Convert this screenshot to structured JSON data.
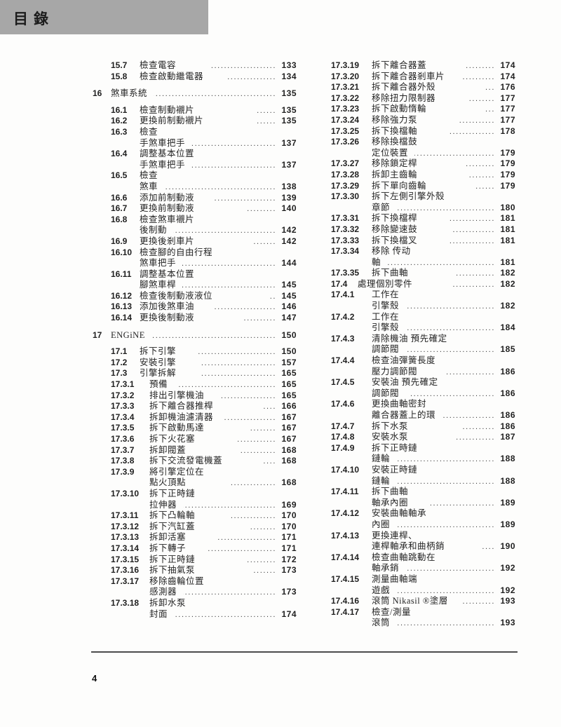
{
  "header": {
    "title": "目錄",
    "bar_color": "#a7a7a7"
  },
  "footer": {
    "page_number": "4"
  },
  "toc": {
    "columns": [
      {
        "entries": [
          {
            "num": "15.7",
            "level": 2,
            "lines": [
              "檢查電容"
            ],
            "dots": 20,
            "page": "133"
          },
          {
            "num": "15.8",
            "level": 2,
            "lines": [
              "檢查啟動繼電器"
            ],
            "dots": 15,
            "page": "134"
          },
          {
            "num": "16",
            "level": 1,
            "lines": [
              "煞車系統"
            ],
            "dots": 40,
            "page": "135"
          },
          {
            "num": "16.1",
            "level": 2,
            "lines": [
              "檢查制動襯片"
            ],
            "dots": 6,
            "page": "135"
          },
          {
            "num": "16.2",
            "level": 2,
            "lines": [
              "更換前制動襯片"
            ],
            "dots": 6,
            "page": "135"
          },
          {
            "num": "16.3",
            "level": 2,
            "lines": [
              "檢查",
              "手煞車把手"
            ],
            "dots": 30,
            "page": "137"
          },
          {
            "num": "16.4",
            "level": 2,
            "lines": [
              "調整基本位置",
              "手煞車把手"
            ],
            "dots": 29,
            "page": "137"
          },
          {
            "num": "16.5",
            "level": 2,
            "lines": [
              "檢查",
              "煞車"
            ],
            "dots": 36,
            "page": "138"
          },
          {
            "num": "16.6",
            "level": 2,
            "lines": [
              "添加前制動液"
            ],
            "dots": 19,
            "page": "139"
          },
          {
            "num": "16.7",
            "level": 2,
            "lines": [
              "更換前制動液"
            ],
            "dots": 9,
            "page": "140"
          },
          {
            "num": "16.8",
            "level": 2,
            "lines": [
              "檢查煞車襯片",
              "後制動"
            ],
            "dots": 40,
            "page": "142"
          },
          {
            "num": "16.9",
            "level": 2,
            "lines": [
              "更換後剎車片"
            ],
            "dots": 7,
            "page": "142"
          },
          {
            "num": "16.10",
            "level": 2,
            "lines": [
              "檢查腳的自由行程",
              "煞車把手"
            ],
            "dots": 39,
            "page": "144"
          },
          {
            "num": "16.11",
            "level": 2,
            "lines": [
              "調整基本位置",
              "腳煞車桿"
            ],
            "dots": 31,
            "page": "145"
          },
          {
            "num": "16.12",
            "level": 2,
            "lines": [
              "檢查後制動液液位"
            ],
            "dots": 2,
            "page": "145"
          },
          {
            "num": "16.13",
            "level": 2,
            "lines": [
              "添加後煞車油"
            ],
            "dots": 19,
            "page": "146"
          },
          {
            "num": "16.14",
            "level": 2,
            "lines": [
              "更換後制動液"
            ],
            "dots": 10,
            "page": "147"
          },
          {
            "num": "17",
            "level": 1,
            "lines": [
              "ENGiNE"
            ],
            "dots": 46,
            "page": "150"
          },
          {
            "num": "17.1",
            "level": 2,
            "lines": [
              "拆下引擎"
            ],
            "dots": 24,
            "page": "150"
          },
          {
            "num": "17.2",
            "level": 2,
            "lines": [
              "安裝引擎"
            ],
            "dots": 23,
            "page": "157"
          },
          {
            "num": "17.3",
            "level": 2,
            "lines": [
              "引擎拆解"
            ],
            "dots": 23,
            "page": "165"
          },
          {
            "num": "17.3.1",
            "level": 3,
            "lines": [
              "預備"
            ],
            "dots": 30,
            "page": "165"
          },
          {
            "num": "17.3.2",
            "level": 3,
            "lines": [
              "排出引擎機油"
            ],
            "dots": 17,
            "page": "165"
          },
          {
            "num": "17.3.3",
            "level": 3,
            "lines": [
              "拆下離合器推桿"
            ],
            "dots": 4,
            "page": "166"
          },
          {
            "num": "17.3.4",
            "level": 3,
            "lines": [
              "拆卸機油濾清器"
            ],
            "dots": 16,
            "page": "167"
          },
          {
            "num": "17.3.5",
            "level": 3,
            "lines": [
              "拆下啟動馬達"
            ],
            "dots": 8,
            "page": "167"
          },
          {
            "num": "17.3.6",
            "level": 3,
            "lines": [
              "拆下火花塞"
            ],
            "dots": 12,
            "page": "167"
          },
          {
            "num": "17.3.7",
            "level": 3,
            "lines": [
              "拆卸閥蓋"
            ],
            "dots": 11,
            "page": "168"
          },
          {
            "num": "17.3.8",
            "level": 3,
            "lines": [
              "拆下交流發電機蓋"
            ],
            "dots": 4,
            "page": "168"
          },
          {
            "num": "17.3.9",
            "level": 3,
            "lines": [
              "將引擎定位在",
              "點火頂點"
            ],
            "dots": 14,
            "page": "168"
          },
          {
            "num": "17.3.10",
            "level": 3,
            "lines": [
              "拆下正時鏈",
              "拉伸器"
            ],
            "dots": 38,
            "page": "169"
          },
          {
            "num": "17.3.11",
            "level": 3,
            "lines": [
              "拆下凸輪軸"
            ],
            "dots": 14,
            "page": "170"
          },
          {
            "num": "17.3.12",
            "level": 3,
            "lines": [
              "拆下汽缸蓋"
            ],
            "dots": 8,
            "page": "170"
          },
          {
            "num": "17.3.13",
            "level": 3,
            "lines": [
              "拆卸活塞"
            ],
            "dots": 18,
            "page": "171"
          },
          {
            "num": "17.3.14",
            "level": 3,
            "lines": [
              "拆下轉子"
            ],
            "dots": 21,
            "page": "171"
          },
          {
            "num": "17.3.15",
            "level": 3,
            "lines": [
              "拆下正時鏈"
            ],
            "dots": 9,
            "page": "172"
          },
          {
            "num": "17.3.16",
            "level": 3,
            "lines": [
              "拆下抽氣泵"
            ],
            "dots": 7,
            "page": "173"
          },
          {
            "num": "17.3.17",
            "level": 3,
            "lines": [
              "移除齒輪位置",
              "感測器"
            ],
            "dots": 41,
            "page": "173"
          },
          {
            "num": "17.3.18",
            "level": 3,
            "lines": [
              "拆卸水泵",
              "封面"
            ],
            "dots": 39,
            "page": "174"
          }
        ]
      },
      {
        "entries": [
          {
            "num": "17.3.19",
            "level": 3,
            "lines": [
              "拆下離合器蓋"
            ],
            "dots": 9,
            "page": "174"
          },
          {
            "num": "17.3.20",
            "level": 3,
            "lines": [
              "拆下離合器剎車片"
            ],
            "dots": 10,
            "page": "174"
          },
          {
            "num": "17.3.21",
            "level": 3,
            "lines": [
              "拆下離合器外殼"
            ],
            "dots": 3,
            "page": "176"
          },
          {
            "num": "17.3.22",
            "level": 3,
            "lines": [
              "移除扭力限制器"
            ],
            "dots": 8,
            "page": "177"
          },
          {
            "num": "17.3.23",
            "level": 3,
            "lines": [
              "拆下啟動惰輪"
            ],
            "dots": 3,
            "page": "177"
          },
          {
            "num": "17.3.24",
            "level": 3,
            "lines": [
              "移除強力泵"
            ],
            "dots": 11,
            "page": "177"
          },
          {
            "num": "17.3.25",
            "level": 3,
            "lines": [
              "拆下換檔軸"
            ],
            "dots": 14,
            "page": "178"
          },
          {
            "num": "17.3.26",
            "level": 3,
            "lines": [
              "移除換檔鼓",
              "定位裝置"
            ],
            "dots": 32,
            "page": "179"
          },
          {
            "num": "17.3.27",
            "level": 3,
            "lines": [
              "移除鎖定桿"
            ],
            "dots": 9,
            "page": "179"
          },
          {
            "num": "17.3.28",
            "level": 3,
            "lines": [
              "拆卸主齒輪"
            ],
            "dots": 8,
            "page": "179"
          },
          {
            "num": "17.3.29",
            "level": 3,
            "lines": [
              "拆下單向齒輪"
            ],
            "dots": 6,
            "page": "179"
          },
          {
            "num": "17.3.30",
            "level": 3,
            "lines": [
              "拆下左側引擎外殼",
              "章節"
            ],
            "dots": 39,
            "page": "180"
          },
          {
            "num": "17.3.31",
            "level": 3,
            "lines": [
              "拆下換檔桿"
            ],
            "dots": 14,
            "page": "181"
          },
          {
            "num": "17.3.32",
            "level": 3,
            "lines": [
              "移除變速鼓"
            ],
            "dots": 13,
            "page": "181"
          },
          {
            "num": "17.3.33",
            "level": 3,
            "lines": [
              "拆下換檔叉"
            ],
            "dots": 14,
            "page": "181"
          },
          {
            "num": "17.3.34",
            "level": 3,
            "lines": [
              "移除 传动",
              "軸"
            ],
            "dots": 38,
            "page": "181"
          },
          {
            "num": "17.3.35",
            "level": 3,
            "lines": [
              "拆下曲軸"
            ],
            "dots": 12,
            "page": "182"
          },
          {
            "num": "17.4",
            "level": 2,
            "lines": [
              "處理個別零件"
            ],
            "dots": 13,
            "page": "182"
          },
          {
            "num": "17.4.1",
            "level": 3,
            "lines": [
              "工作在",
              "引擎殼"
            ],
            "dots": 27,
            "page": "182"
          },
          {
            "num": "17.4.2",
            "level": 3,
            "lines": [
              "工作在",
              "引擎殼"
            ],
            "dots": 27,
            "page": "184"
          },
          {
            "num": "17.4.3",
            "level": 3,
            "lines": [
              "清除機油 預先確定",
              "調節閥"
            ],
            "dots": 27,
            "page": "185"
          },
          {
            "num": "17.4.4",
            "level": 3,
            "lines": [
              "檢查油彈簧長度",
              "壓力調節閥"
            ],
            "dots": 15,
            "page": "186"
          },
          {
            "num": "17.4.5",
            "level": 3,
            "lines": [
              "安裝油 預先確定",
              "調節閥"
            ],
            "dots": 26,
            "page": "186"
          },
          {
            "num": "17.4.6",
            "level": 3,
            "lines": [
              "更換曲軸密封",
              "離合器蓋上的環"
            ],
            "dots": 16,
            "page": "186"
          },
          {
            "num": "17.4.7",
            "level": 3,
            "lines": [
              "拆下水泵"
            ],
            "dots": 10,
            "page": "186"
          },
          {
            "num": "17.4.8",
            "level": 3,
            "lines": [
              "安裝水泵"
            ],
            "dots": 12,
            "page": "187"
          },
          {
            "num": "17.4.9",
            "level": 3,
            "lines": [
              "拆下正時鏈",
              "鏈輪"
            ],
            "dots": 35,
            "page": "188"
          },
          {
            "num": "17.4.10",
            "level": 3,
            "lines": [
              "安裝正時鏈",
              "鏈輪"
            ],
            "dots": 35,
            "page": "188"
          },
          {
            "num": "17.4.11",
            "level": 3,
            "lines": [
              "拆下曲軸",
              "軸承內圈"
            ],
            "dots": 20,
            "page": "189"
          },
          {
            "num": "17.4.12",
            "level": 3,
            "lines": [
              "安裝曲軸軸承",
              "內圈"
            ],
            "dots": 34,
            "page": "189"
          },
          {
            "num": "17.4.13",
            "level": 3,
            "lines": [
              "更換連桿、",
              "連桿軸承和曲柄銷"
            ],
            "dots": 4,
            "page": "190"
          },
          {
            "num": "17.4.14",
            "level": 3,
            "lines": [
              "檢查曲軸跳動在",
              "軸承銷"
            ],
            "dots": 34,
            "page": "192"
          },
          {
            "num": "17.4.15",
            "level": 3,
            "lines": [
              "測量曲軸端",
              "遊戲"
            ],
            "dots": 43,
            "page": "192"
          },
          {
            "num": "17.4.16",
            "level": 3,
            "lines": [
              "滾筒 Nikasil ®塗層"
            ],
            "dots": 10,
            "page": "193"
          },
          {
            "num": "17.4.17",
            "level": 3,
            "lines": [
              "檢查/測量",
              "滾筒"
            ],
            "dots": 35,
            "page": "193"
          }
        ]
      }
    ]
  }
}
